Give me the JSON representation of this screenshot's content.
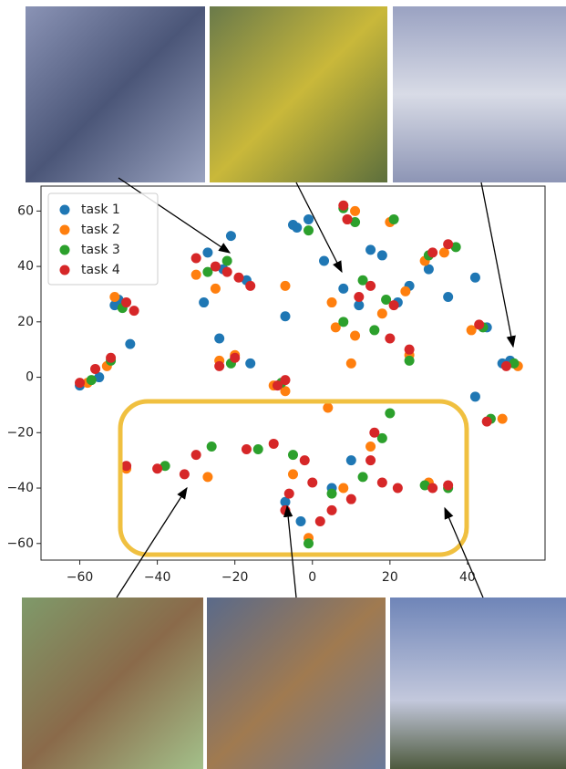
{
  "chart_data": {
    "type": "scatter",
    "xlim": [
      -70,
      60
    ],
    "ylim": [
      -66,
      69
    ],
    "xticks": [
      {
        "value": -60,
        "label": "−60"
      },
      {
        "value": -40,
        "label": "−40"
      },
      {
        "value": -20,
        "label": "−20"
      },
      0,
      20,
      40
    ],
    "yticks": [
      {
        "value": -60,
        "label": "−60"
      },
      {
        "value": -40,
        "label": "−40"
      },
      {
        "value": -20,
        "label": "−20"
      },
      0,
      20,
      40,
      60
    ],
    "legend": "upper left",
    "series": [
      {
        "name": "task 1",
        "color": "#1f77b4",
        "x": [
          -27,
          -21,
          -28,
          -17,
          -23,
          -50,
          -47,
          -51,
          -60,
          -55,
          -24,
          -16,
          -5,
          -1,
          -4,
          -7,
          3,
          8,
          12,
          15,
          18,
          25,
          22,
          30,
          42,
          35,
          49,
          51,
          45,
          42,
          -7,
          5,
          10,
          -3
        ],
        "y": [
          45,
          51,
          27,
          35,
          39,
          28,
          12,
          26,
          -3,
          0,
          14,
          5,
          55,
          57,
          54,
          22,
          42,
          32,
          26,
          46,
          44,
          33,
          27,
          39,
          36,
          29,
          5,
          6,
          18,
          -7,
          -45,
          -40,
          -30,
          -52
        ]
      },
      {
        "name": "task 2",
        "color": "#ff7f0e",
        "x": [
          -25,
          -30,
          -51,
          -58,
          -53,
          -24,
          -20,
          -10,
          -7,
          -7,
          9,
          11,
          20,
          5,
          11,
          18,
          24,
          6,
          10,
          25,
          29,
          34,
          41,
          53,
          49,
          -48,
          -27,
          -5,
          8,
          15,
          30,
          4,
          -1
        ],
        "y": [
          32,
          37,
          29,
          -2,
          4,
          6,
          8,
          -3,
          -5,
          33,
          57,
          60,
          56,
          27,
          15,
          23,
          31,
          18,
          5,
          8,
          42,
          45,
          17,
          4,
          -15,
          -33,
          -36,
          -35,
          -40,
          -25,
          -38,
          -11,
          -58
        ]
      },
      {
        "name": "task 3",
        "color": "#2ca02c",
        "x": [
          -27,
          -22,
          -49,
          -57,
          -52,
          -21,
          -8,
          -1,
          8,
          11,
          21,
          13,
          19,
          8,
          16,
          25,
          30,
          37,
          44,
          52,
          46,
          -38,
          -26,
          -14,
          -5,
          5,
          13,
          20,
          29,
          35,
          -1,
          18
        ],
        "y": [
          38,
          42,
          25,
          -1,
          6,
          5,
          -2,
          53,
          61,
          56,
          57,
          35,
          28,
          20,
          17,
          6,
          44,
          47,
          18,
          5,
          -15,
          -32,
          -25,
          -26,
          -28,
          -42,
          -36,
          -13,
          -39,
          -40,
          -60,
          -22
        ]
      },
      {
        "name": "task 4",
        "color": "#d62728",
        "x": [
          -22,
          -25,
          -19,
          -16,
          -30,
          -48,
          -46,
          -52,
          -56,
          -60,
          -20,
          -24,
          -9,
          -7,
          8,
          9,
          20,
          12,
          15,
          25,
          21,
          31,
          35,
          43,
          50,
          45,
          -48,
          -40,
          -33,
          -30,
          -17,
          -10,
          -6,
          0,
          -2,
          5,
          10,
          15,
          18,
          22,
          31,
          35,
          -7,
          2,
          16
        ],
        "y": [
          38,
          40,
          36,
          33,
          43,
          27,
          24,
          7,
          3,
          -2,
          7,
          4,
          -3,
          -1,
          62,
          57,
          14,
          29,
          33,
          10,
          26,
          45,
          48,
          19,
          4,
          -16,
          -32,
          -33,
          -35,
          -28,
          -26,
          -24,
          -42,
          -38,
          -30,
          -48,
          -44,
          -30,
          -38,
          -40,
          -40,
          -39,
          -48,
          -52,
          -20
        ]
      }
    ]
  }
}
